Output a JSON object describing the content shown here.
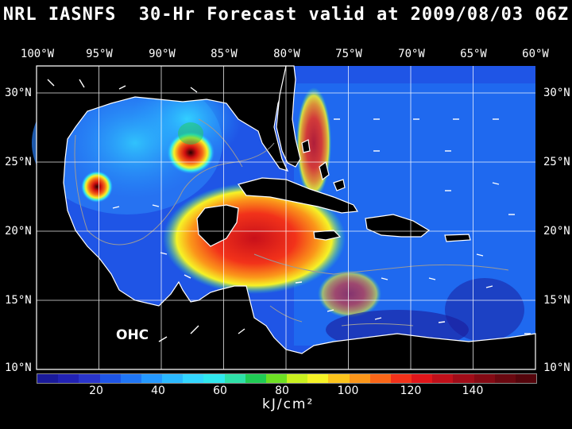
{
  "title": "NRL IASNFS  30-Hr Forecast valid at 2009/08/03 06Z",
  "lon_labels": [
    "100°W",
    "95°W",
    "90°W",
    "85°W",
    "80°W",
    "75°W",
    "70°W",
    "65°W",
    "60°W"
  ],
  "lat_labels": [
    "30°N",
    "25°N",
    "20°N",
    "15°N",
    "10°N"
  ],
  "field_label": "OHC",
  "colorbar": {
    "colors": [
      "#1a1a9a",
      "#2222b4",
      "#2a35cc",
      "#1f55e6",
      "#2076f5",
      "#2599ff",
      "#2bb9ff",
      "#33d6ff",
      "#30e8ee",
      "#2ee0a8",
      "#20cc55",
      "#6de023",
      "#c9f01f",
      "#f6f326",
      "#fbc41c",
      "#fb961a",
      "#fa6618",
      "#f2321a",
      "#e0161a",
      "#c0101a",
      "#a00c18",
      "#840a14",
      "#6a0810",
      "#55050c"
    ],
    "tick_labels": [
      "20",
      "40",
      "60",
      "80",
      "100",
      "120",
      "140"
    ],
    "unit": "kJ/cm²"
  },
  "map_colors": {
    "ocean_deep": "#1f56e0",
    "ocean_mid": "#2a7ff5",
    "ocean_warm_loop": "#2bb9ff",
    "eddy_hot": "#e21b18",
    "land": "#000000",
    "coast": "#ffffff",
    "grid": "#ffffff",
    "bathy": "#9a9a9a"
  }
}
